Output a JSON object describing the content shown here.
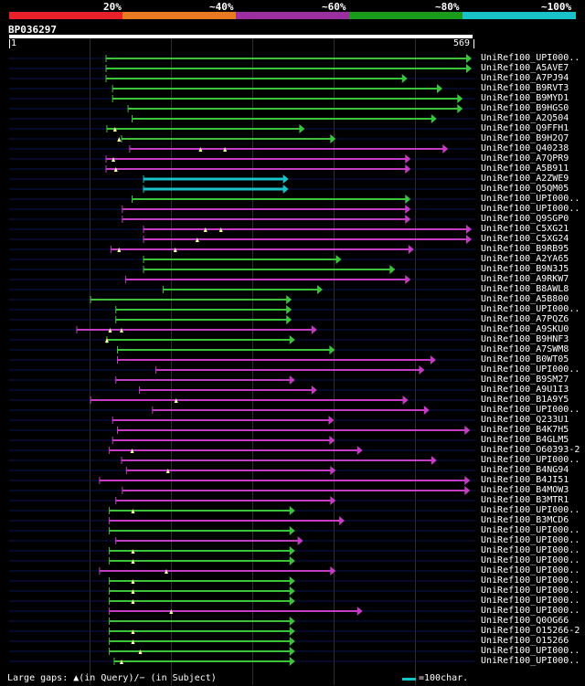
{
  "colors": {
    "band": [
      "#e8202a",
      "#e87b22",
      "#9b2f9f",
      "#1b9b1b",
      "#19c1c8"
    ],
    "background": "#000000",
    "backline": "#0a1450",
    "green": "#3cc33c",
    "magenta": "#c33cc3",
    "cyan": "#19c1c8",
    "gap_marker": "#ffffaa"
  },
  "scale_labels": [
    "20%",
    "~40%",
    "~60%",
    "~80%",
    "~100%"
  ],
  "query": {
    "id": "BP036297",
    "start_label": "1",
    "end_label": "569",
    "length": 569
  },
  "legend": {
    "gaps_text": "Large gaps: ▲(in Query)/− (in Subject)",
    "scale_text": "=100char."
  },
  "chart_data": {
    "type": "alignment-overview",
    "query_length": 569,
    "hits": [
      {
        "label": "UniRef100_UPI000..",
        "start": 119,
        "end": 578,
        "color": "green",
        "gaps": []
      },
      {
        "label": "UniRef100_A5AVE7",
        "start": 119,
        "end": 578,
        "color": "green",
        "gaps": []
      },
      {
        "label": "UniRef100_A7PJ94",
        "start": 119,
        "end": 489,
        "color": "green",
        "gaps": []
      },
      {
        "label": "UniRef100_B9RVT3",
        "start": 127,
        "end": 532,
        "color": "green",
        "gaps": []
      },
      {
        "label": "UniRef100_B9MYD1",
        "start": 127,
        "end": 557,
        "color": "green",
        "gaps": []
      },
      {
        "label": "UniRef100_B9HGS0",
        "start": 146,
        "end": 557,
        "color": "green",
        "gaps": []
      },
      {
        "label": "UniRef100_A2Q504",
        "start": 151,
        "end": 525,
        "color": "green",
        "gaps": []
      },
      {
        "label": "UniRef100_Q9FFH1",
        "start": 120,
        "end": 363,
        "color": "green",
        "gaps": [
          130
        ]
      },
      {
        "label": "UniRef100_B9H2Q7",
        "start": 138,
        "end": 401,
        "color": "green",
        "gaps": [
          135
        ]
      },
      {
        "label": "UniRef100_Q40238",
        "start": 148,
        "end": 539,
        "color": "magenta",
        "gaps": [
          235,
          265
        ]
      },
      {
        "label": "UniRef100_A7QPR9",
        "start": 119,
        "end": 493,
        "color": "magenta",
        "gaps": [
          128
        ]
      },
      {
        "label": "UniRef100_A5B911",
        "start": 119,
        "end": 493,
        "color": "magenta",
        "gaps": [
          131
        ]
      },
      {
        "label": "UniRef100_A2ZWE9",
        "start": 165,
        "end": 343,
        "color": "cyan",
        "gaps": []
      },
      {
        "label": "UniRef100_Q5QM05",
        "start": 165,
        "end": 343,
        "color": "cyan",
        "gaps": []
      },
      {
        "label": "UniRef100_UPI000..",
        "start": 151,
        "end": 493,
        "color": "green",
        "gaps": []
      },
      {
        "label": "UniRef100_UPI000..",
        "start": 139,
        "end": 493,
        "color": "magenta",
        "gaps": []
      },
      {
        "label": "UniRef100_Q9SGP0",
        "start": 139,
        "end": 493,
        "color": "magenta",
        "gaps": []
      },
      {
        "label": "UniRef100_C5XG21",
        "start": 165,
        "end": 578,
        "color": "magenta",
        "gaps": [
          241,
          260
        ]
      },
      {
        "label": "UniRef100_C5XG24",
        "start": 165,
        "end": 578,
        "color": "magenta",
        "gaps": [
          231
        ]
      },
      {
        "label": "UniRef100_B9RB95",
        "start": 125,
        "end": 497,
        "color": "magenta",
        "gaps": [
          135,
          204
        ]
      },
      {
        "label": "UniRef100_A2YA65",
        "start": 165,
        "end": 408,
        "color": "green",
        "gaps": []
      },
      {
        "label": "UniRef100_B9N3J5",
        "start": 165,
        "end": 474,
        "color": "green",
        "gaps": []
      },
      {
        "label": "UniRef100_A9RKW7",
        "start": 143,
        "end": 493,
        "color": "magenta",
        "gaps": []
      },
      {
        "label": "UniRef100_B8AWL8",
        "start": 189,
        "end": 385,
        "color": "green",
        "gaps": []
      },
      {
        "label": "UniRef100_A5B800",
        "start": 100,
        "end": 347,
        "color": "green",
        "gaps": []
      },
      {
        "label": "UniRef100_UPI000..",
        "start": 131,
        "end": 347,
        "color": "green",
        "gaps": []
      },
      {
        "label": "UniRef100_A7PQZ6",
        "start": 131,
        "end": 347,
        "color": "green",
        "gaps": []
      },
      {
        "label": "UniRef100_A9SKU0",
        "start": 83,
        "end": 378,
        "color": "magenta",
        "gaps": [
          124,
          138
        ]
      },
      {
        "label": "UniRef100_B9HNF3",
        "start": 120,
        "end": 351,
        "color": "green",
        "gaps": [
          120
        ]
      },
      {
        "label": "UniRef100_A7SWM8",
        "start": 133,
        "end": 400,
        "color": "green",
        "gaps": []
      },
      {
        "label": "UniRef100_B0WT05",
        "start": 133,
        "end": 524,
        "color": "magenta",
        "gaps": []
      },
      {
        "label": "UniRef100_UPI000..",
        "start": 180,
        "end": 510,
        "color": "magenta",
        "gaps": []
      },
      {
        "label": "UniRef100_B9SM27",
        "start": 131,
        "end": 351,
        "color": "magenta",
        "gaps": []
      },
      {
        "label": "UniRef100_A9U1I3",
        "start": 160,
        "end": 378,
        "color": "magenta",
        "gaps": []
      },
      {
        "label": "UniRef100_B1A9Y5",
        "start": 100,
        "end": 490,
        "color": "magenta",
        "gaps": [
          205
        ]
      },
      {
        "label": "UniRef100_UPI000..",
        "start": 176,
        "end": 516,
        "color": "magenta",
        "gaps": []
      },
      {
        "label": "UniRef100_Q233U1",
        "start": 127,
        "end": 399,
        "color": "magenta",
        "gaps": []
      },
      {
        "label": "UniRef100_B4K7H5",
        "start": 133,
        "end": 566,
        "color": "magenta",
        "gaps": []
      },
      {
        "label": "UniRef100_B4GLM5",
        "start": 127,
        "end": 400,
        "color": "magenta",
        "gaps": []
      },
      {
        "label": "UniRef100_O60393-2",
        "start": 123,
        "end": 434,
        "color": "magenta",
        "gaps": [
          151
        ]
      },
      {
        "label": "UniRef100_UPI000..",
        "start": 138,
        "end": 525,
        "color": "magenta",
        "gaps": []
      },
      {
        "label": "UniRef100_B4NG94",
        "start": 144,
        "end": 401,
        "color": "magenta",
        "gaps": [
          195
        ]
      },
      {
        "label": "UniRef100_B4JI51",
        "start": 111,
        "end": 566,
        "color": "magenta",
        "gaps": []
      },
      {
        "label": "UniRef100_B4MOW3",
        "start": 139,
        "end": 566,
        "color": "magenta",
        "gaps": []
      },
      {
        "label": "UniRef100_B3MTR1",
        "start": 131,
        "end": 401,
        "color": "magenta",
        "gaps": []
      },
      {
        "label": "UniRef100_UPI000..",
        "start": 123,
        "end": 351,
        "color": "green",
        "gaps": [
          152
        ]
      },
      {
        "label": "UniRef100_B3MCD6",
        "start": 123,
        "end": 412,
        "color": "magenta",
        "gaps": []
      },
      {
        "label": "UniRef100_UPI000..",
        "start": 123,
        "end": 351,
        "color": "green",
        "gaps": []
      },
      {
        "label": "UniRef100_UPI000..",
        "start": 131,
        "end": 361,
        "color": "magenta",
        "gaps": []
      },
      {
        "label": "UniRef100_UPI000..",
        "start": 123,
        "end": 351,
        "color": "green",
        "gaps": [
          152
        ]
      },
      {
        "label": "UniRef100_UPI000..",
        "start": 123,
        "end": 351,
        "color": "green",
        "gaps": [
          152
        ]
      },
      {
        "label": "UniRef100_UPI000..",
        "start": 111,
        "end": 401,
        "color": "magenta",
        "gaps": [
          193
        ]
      },
      {
        "label": "UniRef100_UPI000..",
        "start": 123,
        "end": 351,
        "color": "green",
        "gaps": [
          152
        ]
      },
      {
        "label": "UniRef100_UPI000..",
        "start": 123,
        "end": 351,
        "color": "green",
        "gaps": [
          152
        ]
      },
      {
        "label": "UniRef100_UPI000..",
        "start": 123,
        "end": 351,
        "color": "green",
        "gaps": [
          152
        ]
      },
      {
        "label": "UniRef100_UPI000..",
        "start": 123,
        "end": 434,
        "color": "magenta",
        "gaps": [
          199
        ]
      },
      {
        "label": "UniRef100_Q0OG66",
        "start": 123,
        "end": 351,
        "color": "green",
        "gaps": []
      },
      {
        "label": "UniRef100_O15266-2",
        "start": 123,
        "end": 351,
        "color": "green",
        "gaps": [
          152
        ]
      },
      {
        "label": "UniRef100_O15266",
        "start": 123,
        "end": 351,
        "color": "green",
        "gaps": [
          152
        ]
      },
      {
        "label": "UniRef100_UPI000..",
        "start": 123,
        "end": 351,
        "color": "green",
        "gaps": [
          161
        ]
      },
      {
        "label": "UniRef100_UPI000..",
        "start": 129,
        "end": 351,
        "color": "green",
        "gaps": [
          138
        ]
      }
    ]
  }
}
